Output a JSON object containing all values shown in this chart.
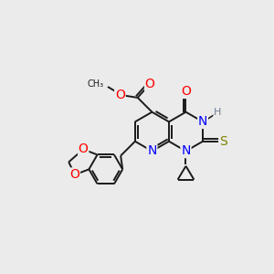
{
  "bg_color": "#ebebeb",
  "bond_color": "#1a1a1a",
  "bond_width": 1.4,
  "N_color": "#0000ff",
  "O_color": "#ff0000",
  "S_color": "#808000",
  "H_color": "#708090",
  "font_size": 9,
  "fig_size": [
    3.0,
    3.0
  ],
  "dpi": 100,
  "xlim": [
    0,
    10
  ],
  "ylim": [
    0,
    10
  ]
}
